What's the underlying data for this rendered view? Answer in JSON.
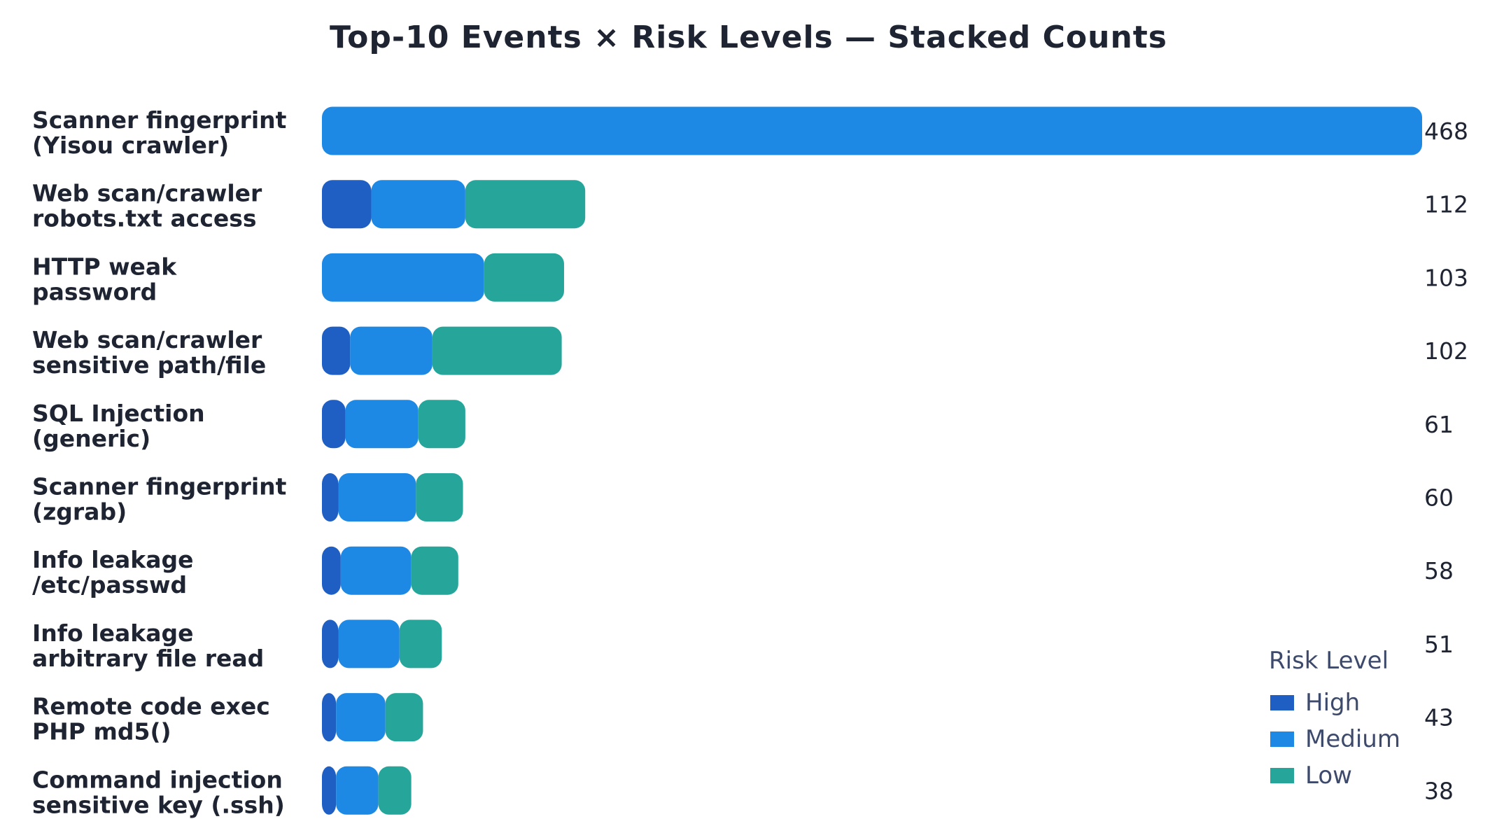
{
  "chart_data": {
    "type": "bar",
    "orientation": "horizontal",
    "stacked": true,
    "title": "Top-10 Events × Risk Levels — Stacked Counts",
    "categories": [
      [
        "Scanner fingerprint",
        "(Yisou crawler)"
      ],
      [
        "Web scan/crawler",
        "robots.txt access"
      ],
      [
        "HTTP weak",
        "password"
      ],
      [
        "Web scan/crawler",
        "sensitive path/file"
      ],
      [
        "SQL Injection",
        "(generic)"
      ],
      [
        "Scanner fingerprint",
        "(zgrab)"
      ],
      [
        "Info leakage",
        "/etc/passwd"
      ],
      [
        "Info leakage",
        "arbitrary file read"
      ],
      [
        "Remote code exec",
        "PHP md5()"
      ],
      [
        "Command injection",
        "sensitive key (.ssh)"
      ]
    ],
    "series": [
      {
        "name": "High",
        "color": "#1f5fc4",
        "values": [
          0,
          21,
          0,
          12,
          10,
          7,
          8,
          7,
          6,
          6
        ]
      },
      {
        "name": "Medium",
        "color": "#1e88e5",
        "values": [
          468,
          40,
          69,
          35,
          31,
          33,
          30,
          26,
          21,
          18
        ]
      },
      {
        "name": "Low",
        "color": "#26a69a",
        "values": [
          0,
          51,
          34,
          55,
          20,
          20,
          20,
          18,
          16,
          14
        ]
      }
    ],
    "totals": [
      "468",
      "112",
      "103",
      "102",
      "61",
      "60",
      "58",
      "51",
      "43",
      "38"
    ],
    "xlim": [
      0,
      468
    ],
    "grid": false,
    "legend": {
      "title": "Risk Level",
      "placement": "bottom-right"
    }
  }
}
